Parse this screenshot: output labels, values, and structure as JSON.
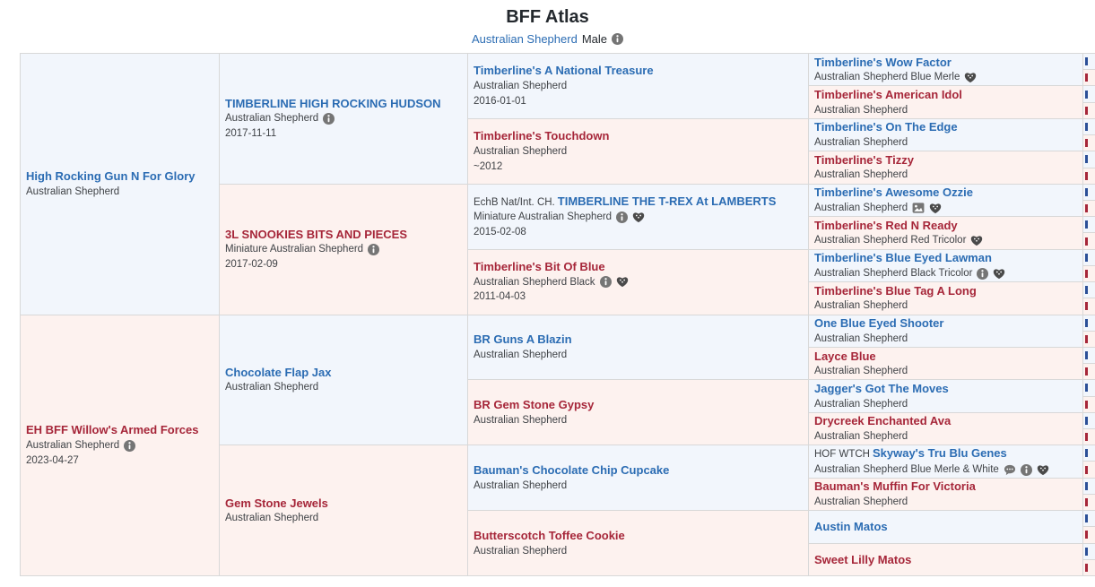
{
  "header": {
    "title": "BFF Atlas",
    "subtitle": {
      "breed_link": "Australian Shepherd",
      "sex_label": "Male",
      "info_icon": "info-icon"
    }
  },
  "pedigree": {
    "gen1": [
      {
        "name": "High Rocking Gun N For Glory",
        "breed": "Australian Shepherd",
        "sex": "male",
        "icons": []
      },
      {
        "name": "EH BFF Willow's Armed Forces",
        "breed": "Australian Shepherd",
        "date": "2023-04-27",
        "sex": "female",
        "icons": [
          "info-icon"
        ]
      }
    ],
    "gen2": [
      {
        "name": "TIMBERLINE HIGH ROCKING HUDSON",
        "breed": "Australian Shepherd",
        "date": "2017-11-11",
        "sex": "male",
        "icons": [
          "info-icon"
        ]
      },
      {
        "name": "3L SNOOKIES BITS AND PIECES",
        "breed": "Miniature Australian Shepherd",
        "date": "2017-02-09",
        "sex": "female",
        "icons": [
          "info-icon"
        ]
      },
      {
        "name": "Chocolate Flap Jax",
        "breed": "Australian Shepherd",
        "sex": "male",
        "icons": []
      },
      {
        "name": "Gem Stone Jewels",
        "breed": "Australian Shepherd",
        "sex": "female",
        "icons": []
      }
    ],
    "gen3": [
      {
        "name": "Timberline's A National Treasure",
        "breed": "Australian Shepherd",
        "date": "2016-01-01",
        "sex": "male",
        "icons": []
      },
      {
        "name": "Timberline's Touchdown",
        "breed": "Australian Shepherd",
        "date": "~2012",
        "sex": "female",
        "icons": []
      },
      {
        "prefix": "EchB Nat/Int. CH.",
        "name": "TIMBERLINE THE T-REX At LAMBERTS",
        "breed": "Miniature Australian Shepherd",
        "date": "2015-02-08",
        "sex": "male",
        "icons": [
          "info-icon",
          "health-icon"
        ]
      },
      {
        "name": "Timberline's Bit Of Blue",
        "breed": "Australian Shepherd Black",
        "date": "2011-04-03",
        "sex": "female",
        "icons": [
          "info-icon",
          "health-icon"
        ]
      },
      {
        "name": "BR Guns A Blazin",
        "breed": "Australian Shepherd",
        "sex": "male",
        "icons": []
      },
      {
        "name": "BR Gem Stone Gypsy",
        "breed": "Australian Shepherd",
        "sex": "female",
        "icons": []
      },
      {
        "name": "Bauman's Chocolate Chip Cupcake",
        "breed": "Australian Shepherd",
        "sex": "male",
        "icons": []
      },
      {
        "name": "Butterscotch Toffee Cookie",
        "breed": "Australian Shepherd",
        "sex": "female",
        "icons": []
      }
    ],
    "gen4": [
      {
        "name": "Timberline's Wow Factor",
        "breed": "Australian Shepherd Blue Merle",
        "sex": "male",
        "icons": [
          "health-icon"
        ]
      },
      {
        "name": "Timberline's American Idol",
        "breed": "Australian Shepherd",
        "sex": "female",
        "icons": []
      },
      {
        "name": "Timberline's On The Edge",
        "breed": "Australian Shepherd",
        "sex": "male",
        "icons": []
      },
      {
        "name": "Timberline's Tizzy",
        "breed": "Australian Shepherd",
        "sex": "female",
        "icons": []
      },
      {
        "name": "Timberline's Awesome Ozzie",
        "breed": "Australian Shepherd",
        "sex": "male",
        "icons": [
          "photo-icon",
          "health-icon"
        ]
      },
      {
        "name": "Timberline's Red N Ready",
        "breed": "Australian Shepherd Red Tricolor",
        "sex": "female",
        "icons": [
          "health-icon"
        ]
      },
      {
        "name": "Timberline's Blue Eyed Lawman",
        "breed": "Australian Shepherd Black Tricolor",
        "sex": "male",
        "icons": [
          "info-icon",
          "health-icon"
        ]
      },
      {
        "name": "Timberline's Blue Tag A Long",
        "breed": "Australian Shepherd",
        "sex": "female",
        "icons": []
      },
      {
        "name": "One Blue Eyed Shooter",
        "breed": "Australian Shepherd",
        "sex": "male",
        "icons": []
      },
      {
        "name": "Layce Blue",
        "breed": "Australian Shepherd",
        "sex": "female",
        "icons": []
      },
      {
        "name": "Jagger's Got The Moves",
        "breed": "Australian Shepherd",
        "sex": "male",
        "icons": []
      },
      {
        "name": "Drycreek Enchanted Ava",
        "breed": "Australian Shepherd",
        "sex": "female",
        "icons": []
      },
      {
        "prefix": "HOF WTCH",
        "name": "Skyway's Tru Blu Genes",
        "breed": "Australian Shepherd Blue Merle & White",
        "sex": "male",
        "icons": [
          "comments-icon",
          "info-icon",
          "health-icon"
        ]
      },
      {
        "name": "Bauman's Muffin For Victoria",
        "breed": "Australian Shepherd",
        "sex": "female",
        "icons": []
      },
      {
        "name": "Austin Matos",
        "sex": "male",
        "icons": []
      },
      {
        "name": "Sweet Lilly Matos",
        "sex": "female",
        "icons": []
      }
    ],
    "gen5_visible_sliver_cells": 32
  },
  "colors": {
    "male_bg": "#f2f6fc",
    "female_bg": "#fdf2ef",
    "male_name": "#2b6cb3",
    "female_name": "#a62639",
    "secondary_text": "#3f4246",
    "grid_line": "#d8d8d8"
  }
}
